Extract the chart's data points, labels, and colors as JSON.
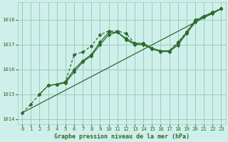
{
  "title": "Graphe pression niveau de la mer (hPa)",
  "background_color": "#cff0ea",
  "grid_color": "#99ccbb",
  "line_color": "#2d6a2d",
  "xlim": [
    -0.5,
    23.5
  ],
  "ylim": [
    1013.8,
    1018.7
  ],
  "yticks": [
    1014,
    1015,
    1016,
    1017,
    1018
  ],
  "xticks": [
    0,
    1,
    2,
    3,
    4,
    5,
    6,
    7,
    8,
    9,
    10,
    11,
    12,
    13,
    14,
    15,
    16,
    17,
    18,
    19,
    20,
    21,
    22,
    23
  ],
  "line_straight": {
    "x": [
      0,
      23
    ],
    "y": [
      1014.25,
      1018.45
    ]
  },
  "line_dotted": {
    "x": [
      0,
      1,
      2,
      3,
      4,
      5,
      6,
      7,
      8,
      9,
      10,
      11,
      12,
      13,
      14,
      15,
      16,
      17,
      18,
      19,
      20,
      21,
      22,
      23
    ],
    "y": [
      1014.25,
      1014.6,
      1015.0,
      1015.35,
      1015.4,
      1015.5,
      1016.6,
      1016.7,
      1016.95,
      1017.4,
      1017.55,
      1017.55,
      1017.45,
      1017.05,
      1017.05,
      1016.85,
      1016.75,
      1016.75,
      1017.1,
      1017.5,
      1018.0,
      1018.15,
      1018.3,
      1018.45
    ]
  },
  "line_mid1": {
    "x": [
      2,
      3,
      4,
      5,
      6,
      7,
      8,
      9,
      10,
      11,
      12,
      13,
      14,
      15,
      16,
      17,
      18,
      19,
      20,
      21,
      22,
      23
    ],
    "y": [
      1015.0,
      1015.35,
      1015.4,
      1015.5,
      1016.0,
      1016.35,
      1016.6,
      1017.1,
      1017.5,
      1017.5,
      1017.25,
      1017.05,
      1017.05,
      1016.85,
      1016.75,
      1016.75,
      1017.05,
      1017.5,
      1017.95,
      1018.15,
      1018.3,
      1018.45
    ]
  },
  "line_mid2": {
    "x": [
      3,
      4,
      5,
      6,
      7,
      8,
      9,
      10,
      11,
      12,
      13,
      14,
      15,
      16,
      17,
      18,
      19,
      20,
      21,
      22,
      23
    ],
    "y": [
      1015.35,
      1015.4,
      1015.45,
      1015.9,
      1016.3,
      1016.55,
      1017.0,
      1017.4,
      1017.5,
      1017.2,
      1017.0,
      1017.0,
      1016.82,
      1016.72,
      1016.72,
      1016.98,
      1017.45,
      1017.9,
      1018.1,
      1018.25,
      1018.45
    ]
  }
}
